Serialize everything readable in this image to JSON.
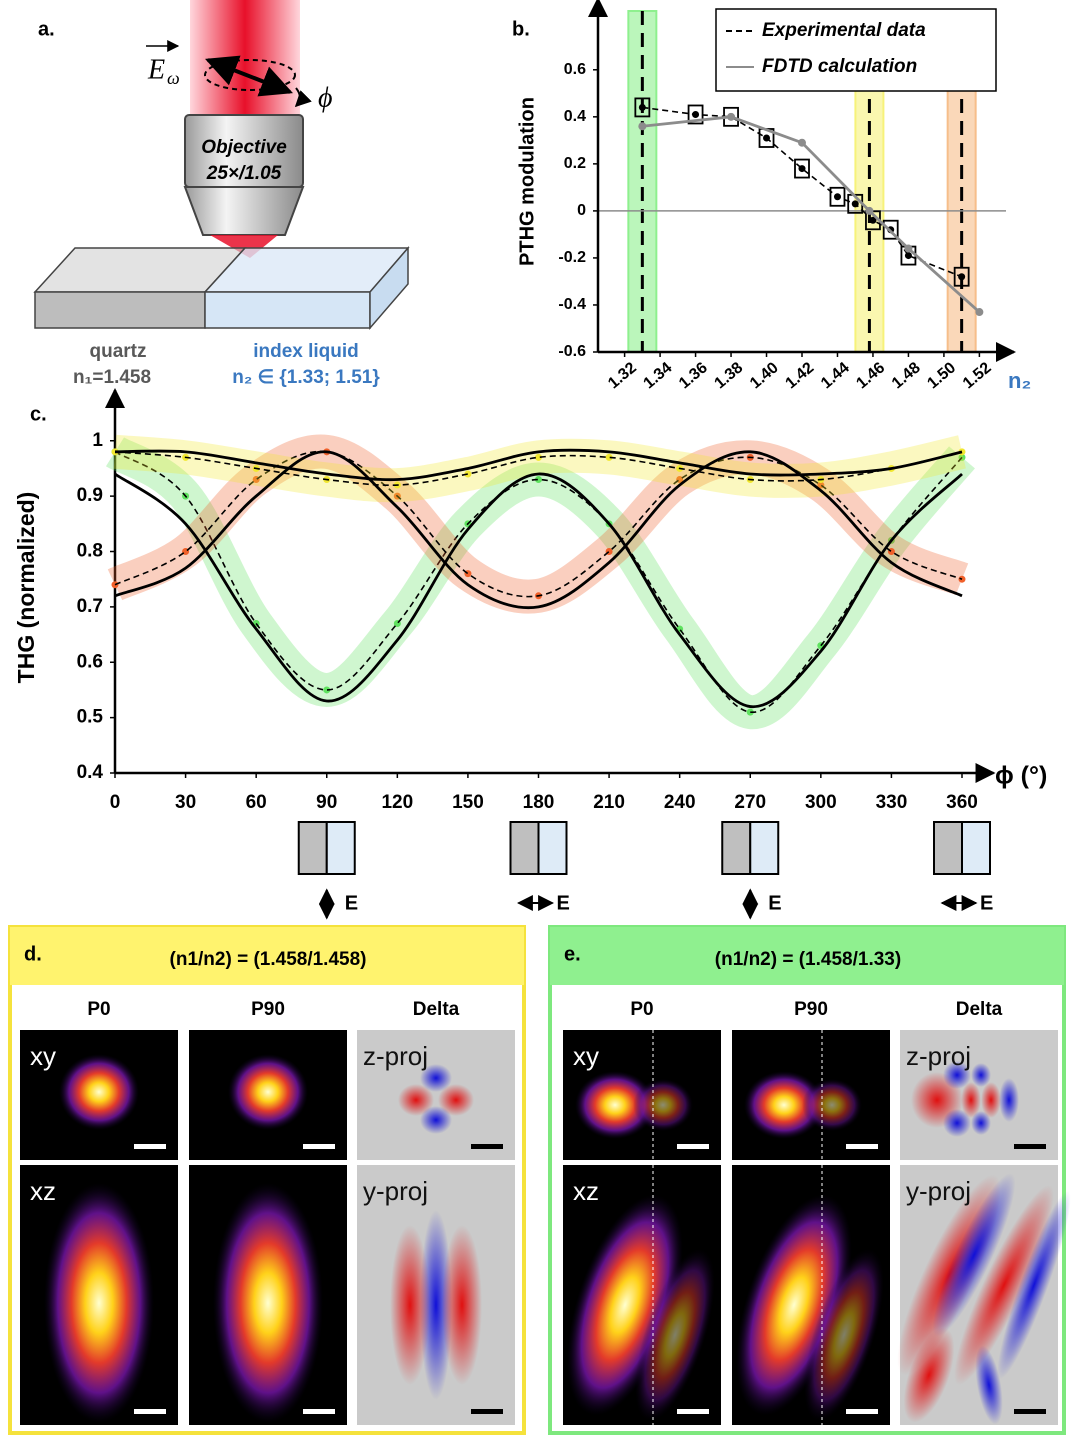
{
  "panel_a": {
    "label": "a.",
    "field": "E",
    "field_subscript": "ω",
    "angle": "ϕ",
    "objective": [
      "Objective",
      "25×/1.05"
    ],
    "material1": "quartz",
    "n1": "n₁=1.458",
    "material2": "index liquid",
    "n2": "n₂ ∈ {1.33; 1.51}"
  },
  "chart_data": [
    {
      "type": "line",
      "label": "b.",
      "ylabel": "PTHG modulation",
      "xlabel": "n₂",
      "xlim": [
        1.305,
        1.535
      ],
      "ylim": [
        -0.6,
        0.85
      ],
      "xticks": [
        1.32,
        1.34,
        1.36,
        1.38,
        {
          "value": 1.4,
          "label": "1.40"
        },
        1.42,
        1.44,
        1.46,
        1.48,
        {
          "value": 1.5,
          "label": "1.50"
        },
        1.52
      ],
      "yticks": [
        -0.6,
        -0.4,
        -0.2,
        0,
        0.2,
        0.4,
        0.6
      ],
      "xtick_rotation": -40,
      "zero_line": true,
      "legend": "top-right",
      "highlights": [
        {
          "x": 1.33,
          "color": "#8ef08e"
        },
        {
          "x": 1.458,
          "color": "#f7f27a"
        },
        {
          "x": 1.51,
          "color": "#f6be8a"
        }
      ],
      "series": [
        {
          "name": "Experimental data",
          "color": "#000000",
          "dash": true,
          "marker": "box",
          "x": [
            1.33,
            1.36,
            1.38,
            1.4,
            1.42,
            1.44,
            1.45,
            1.46,
            1.47,
            1.48,
            1.51
          ],
          "values": [
            0.44,
            0.41,
            0.4,
            0.31,
            0.18,
            0.06,
            0.03,
            -0.04,
            -0.08,
            -0.19,
            -0.28
          ]
        },
        {
          "name": "FDTD calculation",
          "color": "#8c8c8c",
          "dash": false,
          "marker": "circle",
          "x": [
            1.33,
            1.38,
            1.42,
            1.458,
            1.48,
            1.52
          ],
          "values": [
            0.36,
            0.4,
            0.29,
            0.0,
            -0.16,
            -0.43
          ]
        }
      ]
    },
    {
      "type": "line",
      "label": "c.",
      "ylabel": "THG (normalized)",
      "xlabel": "ϕ (°)",
      "xlim": [
        0,
        370
      ],
      "ylim": [
        0.4,
        1.07
      ],
      "smooth": true,
      "xticks": [
        0,
        30,
        60,
        90,
        120,
        150,
        180,
        210,
        240,
        270,
        300,
        330,
        360
      ],
      "yticks": [
        0.4,
        0.5,
        0.6,
        0.7,
        0.8,
        0.9,
        1
      ],
      "x": [
        0,
        30,
        60,
        90,
        120,
        150,
        180,
        210,
        240,
        270,
        300,
        330,
        360
      ],
      "series": [
        {
          "color": "#5fe25f",
          "line_color": "#000000",
          "dash": true,
          "band": true,
          "marker": "dot",
          "values": [
            0.98,
            0.9,
            0.67,
            0.55,
            0.67,
            0.85,
            0.93,
            0.85,
            0.66,
            0.51,
            0.63,
            0.82,
            0.97
          ]
        },
        {
          "color": "#f0602a",
          "line_color": "#000000",
          "dash": true,
          "band": true,
          "marker": "dot",
          "values": [
            0.74,
            0.8,
            0.93,
            0.98,
            0.9,
            0.76,
            0.72,
            0.8,
            0.93,
            0.97,
            0.92,
            0.8,
            0.75
          ]
        },
        {
          "color": "#f2e830",
          "line_color": "#000000",
          "dash": true,
          "band": true,
          "marker": "dot",
          "values": [
            0.98,
            0.97,
            0.95,
            0.93,
            0.92,
            0.94,
            0.97,
            0.97,
            0.95,
            0.93,
            0.93,
            0.95,
            0.98
          ]
        },
        {
          "color": "#000000",
          "dash": false,
          "values": [
            0.94,
            0.85,
            0.66,
            0.53,
            0.64,
            0.84,
            0.94,
            0.85,
            0.65,
            0.52,
            0.62,
            0.82,
            0.94
          ]
        },
        {
          "color": "#000000",
          "dash": false,
          "values": [
            0.72,
            0.77,
            0.9,
            0.98,
            0.88,
            0.74,
            0.7,
            0.78,
            0.92,
            0.98,
            0.91,
            0.78,
            0.72
          ]
        },
        {
          "color": "#000000",
          "dash": false,
          "values": [
            0.98,
            0.98,
            0.96,
            0.94,
            0.93,
            0.95,
            0.98,
            0.98,
            0.96,
            0.94,
            0.94,
            0.95,
            0.98
          ]
        }
      ],
      "polarization": [
        {
          "x": 90,
          "label": "E",
          "direction": "vertical"
        },
        {
          "x": 180,
          "label": "E",
          "direction": "horizontal"
        },
        {
          "x": 270,
          "label": "E",
          "direction": "vertical"
        },
        {
          "x": 360,
          "label": "E",
          "direction": "horizontal"
        }
      ]
    }
  ],
  "panel_d": {
    "label": "d.",
    "title": "(n1/n2) = (1.458/1.458)",
    "columns": [
      "P0",
      "P90",
      "Delta"
    ],
    "row_labels": [
      "xy",
      "xz"
    ],
    "delta_labels": [
      "z-proj",
      "y-proj"
    ],
    "color": "#f5e23c",
    "header_color": "#fff36e"
  },
  "panel_e": {
    "label": "e.",
    "title": "(n1/n2) = (1.458/1.33)",
    "columns": [
      "P0",
      "P90",
      "Delta"
    ],
    "row_labels": [
      "xy",
      "xz"
    ],
    "delta_labels": [
      "z-proj",
      "y-proj"
    ],
    "color": "#7ee87e",
    "header_color": "#8ff08f"
  }
}
